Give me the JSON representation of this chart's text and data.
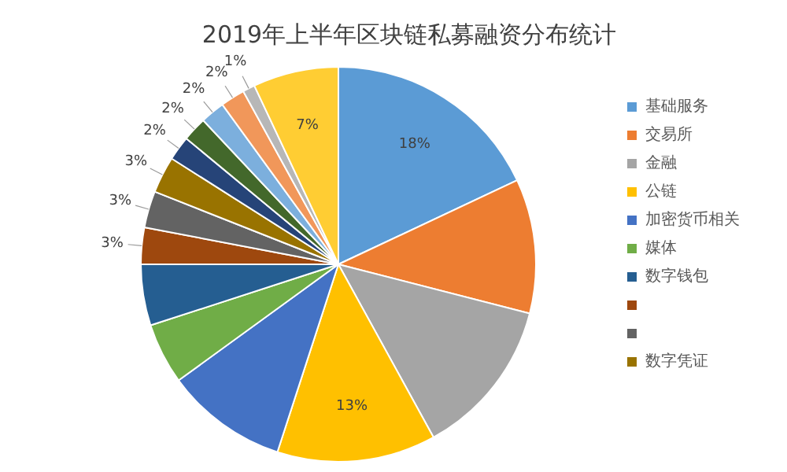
{
  "chart_data": {
    "type": "pie",
    "title": "2019年上半年区块链私募融资分布统计",
    "categories": [
      "基础服务",
      "交易所",
      "金融",
      "公链",
      "加密货币相关",
      "媒体",
      "数字钱包",
      null,
      null,
      "数字凭证",
      null,
      null,
      null,
      null,
      null,
      null
    ],
    "values": [
      18,
      11,
      13,
      13,
      10,
      5,
      5,
      3,
      3,
      3,
      2,
      2,
      2,
      2,
      1,
      7
    ],
    "value_labels": [
      "18%",
      null,
      null,
      "13%",
      null,
      null,
      null,
      "3%",
      "3%",
      "3%",
      "2%",
      "2%",
      "2%",
      "2%",
      "1%",
      "7%"
    ],
    "colors": [
      "#5b9bd5",
      "#ed7d31",
      "#a5a5a5",
      "#ffc000",
      "#4472c4",
      "#70ad47",
      "#255e91",
      "#9e480e",
      "#636363",
      "#997300",
      "#264478",
      "#43682b",
      "#7cafdd",
      "#f1975a",
      "#b7b7b7",
      "#ffcd33"
    ],
    "legend": "right"
  }
}
